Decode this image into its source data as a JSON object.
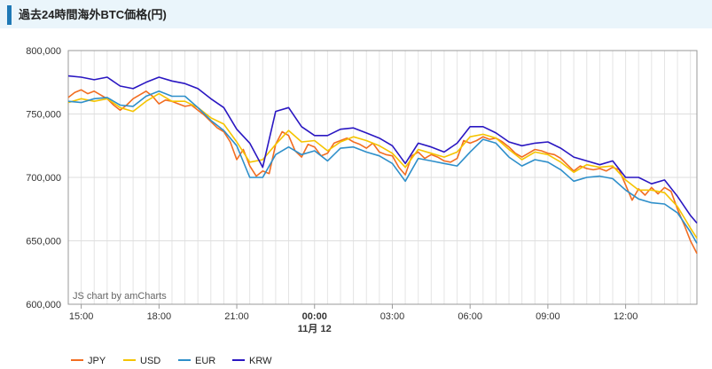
{
  "header": {
    "title": "過去24時間海外BTC価格(円)"
  },
  "chart_data": {
    "type": "line",
    "x_tick_labels": [
      "15:00",
      "18:00",
      "21:00",
      "00:00",
      "03:00",
      "06:00",
      "09:00",
      "12:00"
    ],
    "x_tick_hours": [
      15,
      18,
      21,
      24,
      27,
      30,
      33,
      36
    ],
    "date_label": "11月 12",
    "x_range_hours": [
      14.5,
      38.75
    ],
    "ylim": [
      600000,
      800000
    ],
    "y_ticks": [
      600000,
      650000,
      700000,
      750000,
      800000
    ],
    "y_tick_labels": [
      "600,000",
      "650,000",
      "700,000",
      "750,000",
      "800,000"
    ],
    "grid": true,
    "legend_position": "bottom-left",
    "credit": "JS chart by amCharts",
    "series": [
      {
        "name": "JPY",
        "color": "#f26d21",
        "points": [
          [
            14.5,
            763000
          ],
          [
            14.75,
            767000
          ],
          [
            15.0,
            769000
          ],
          [
            15.25,
            766000
          ],
          [
            15.5,
            768000
          ],
          [
            15.75,
            765000
          ],
          [
            16.0,
            762000
          ],
          [
            16.25,
            757000
          ],
          [
            16.5,
            753000
          ],
          [
            16.75,
            757000
          ],
          [
            17.0,
            762000
          ],
          [
            17.25,
            765000
          ],
          [
            17.5,
            768000
          ],
          [
            17.75,
            764000
          ],
          [
            18.0,
            758000
          ],
          [
            18.25,
            761000
          ],
          [
            18.5,
            760000
          ],
          [
            18.75,
            758000
          ],
          [
            19.0,
            756000
          ],
          [
            19.25,
            757000
          ],
          [
            19.5,
            753000
          ],
          [
            19.75,
            749000
          ],
          [
            20.0,
            744000
          ],
          [
            20.25,
            739000
          ],
          [
            20.5,
            736000
          ],
          [
            20.75,
            728000
          ],
          [
            21.0,
            714000
          ],
          [
            21.25,
            722000
          ],
          [
            21.5,
            709000
          ],
          [
            21.75,
            701000
          ],
          [
            22.0,
            705000
          ],
          [
            22.25,
            703000
          ],
          [
            22.5,
            726000
          ],
          [
            22.75,
            736000
          ],
          [
            23.0,
            733000
          ],
          [
            23.25,
            721000
          ],
          [
            23.5,
            716000
          ],
          [
            23.75,
            726000
          ],
          [
            24.0,
            724000
          ],
          [
            24.25,
            717000
          ],
          [
            24.5,
            719000
          ],
          [
            24.75,
            727000
          ],
          [
            25.0,
            729000
          ],
          [
            25.25,
            731000
          ],
          [
            25.5,
            728000
          ],
          [
            25.75,
            726000
          ],
          [
            26.0,
            723000
          ],
          [
            26.25,
            727000
          ],
          [
            26.5,
            720000
          ],
          [
            26.75,
            718000
          ],
          [
            27.0,
            717000
          ],
          [
            27.25,
            708000
          ],
          [
            27.5,
            702000
          ],
          [
            27.75,
            717000
          ],
          [
            28.0,
            720000
          ],
          [
            28.25,
            715000
          ],
          [
            28.5,
            718000
          ],
          [
            28.75,
            716000
          ],
          [
            29.0,
            713000
          ],
          [
            29.25,
            712000
          ],
          [
            29.5,
            715000
          ],
          [
            29.75,
            729000
          ],
          [
            30.0,
            727000
          ],
          [
            30.25,
            729000
          ],
          [
            30.5,
            732000
          ],
          [
            30.75,
            730000
          ],
          [
            31.0,
            731000
          ],
          [
            31.25,
            728000
          ],
          [
            31.5,
            724000
          ],
          [
            31.75,
            719000
          ],
          [
            32.0,
            716000
          ],
          [
            32.25,
            719000
          ],
          [
            32.5,
            722000
          ],
          [
            32.75,
            721000
          ],
          [
            33.0,
            719000
          ],
          [
            33.25,
            718000
          ],
          [
            33.5,
            715000
          ],
          [
            33.75,
            710000
          ],
          [
            34.0,
            705000
          ],
          [
            34.25,
            709000
          ],
          [
            34.5,
            707000
          ],
          [
            34.75,
            706000
          ],
          [
            35.0,
            707000
          ],
          [
            35.25,
            705000
          ],
          [
            35.5,
            708000
          ],
          [
            35.75,
            706000
          ],
          [
            36.0,
            694000
          ],
          [
            36.25,
            682000
          ],
          [
            36.5,
            691000
          ],
          [
            36.75,
            686000
          ],
          [
            37.0,
            692000
          ],
          [
            37.25,
            687000
          ],
          [
            37.5,
            692000
          ],
          [
            37.75,
            689000
          ],
          [
            38.0,
            675000
          ],
          [
            38.25,
            663000
          ],
          [
            38.5,
            650000
          ],
          [
            38.75,
            640000
          ]
        ]
      },
      {
        "name": "USD",
        "color": "#f5c400",
        "points": [
          [
            14.5,
            759000
          ],
          [
            15.0,
            762000
          ],
          [
            15.5,
            760000
          ],
          [
            16.0,
            762000
          ],
          [
            16.5,
            755000
          ],
          [
            17.0,
            752000
          ],
          [
            17.5,
            760000
          ],
          [
            18.0,
            766000
          ],
          [
            18.5,
            760000
          ],
          [
            19.0,
            760000
          ],
          [
            19.5,
            755000
          ],
          [
            20.0,
            747000
          ],
          [
            20.5,
            742000
          ],
          [
            21.0,
            728000
          ],
          [
            21.5,
            712000
          ],
          [
            22.0,
            714000
          ],
          [
            22.5,
            726000
          ],
          [
            23.0,
            737000
          ],
          [
            23.5,
            728000
          ],
          [
            24.0,
            729000
          ],
          [
            24.5,
            721000
          ],
          [
            25.0,
            728000
          ],
          [
            25.5,
            732000
          ],
          [
            26.0,
            729000
          ],
          [
            26.5,
            725000
          ],
          [
            27.0,
            719000
          ],
          [
            27.5,
            708000
          ],
          [
            28.0,
            722000
          ],
          [
            28.5,
            719000
          ],
          [
            29.0,
            716000
          ],
          [
            29.5,
            720000
          ],
          [
            30.0,
            732000
          ],
          [
            30.5,
            734000
          ],
          [
            31.0,
            731000
          ],
          [
            31.5,
            722000
          ],
          [
            32.0,
            714000
          ],
          [
            32.5,
            720000
          ],
          [
            33.0,
            718000
          ],
          [
            33.5,
            712000
          ],
          [
            34.0,
            704000
          ],
          [
            34.5,
            710000
          ],
          [
            35.0,
            708000
          ],
          [
            35.5,
            709000
          ],
          [
            36.0,
            698000
          ],
          [
            36.5,
            690000
          ],
          [
            37.0,
            690000
          ],
          [
            37.5,
            688000
          ],
          [
            38.0,
            677000
          ],
          [
            38.5,
            660000
          ],
          [
            38.75,
            652000
          ]
        ]
      },
      {
        "name": "EUR",
        "color": "#2e8fca",
        "points": [
          [
            14.5,
            760000
          ],
          [
            15.0,
            759000
          ],
          [
            15.5,
            762000
          ],
          [
            16.0,
            763000
          ],
          [
            16.5,
            757000
          ],
          [
            17.0,
            756000
          ],
          [
            17.5,
            764000
          ],
          [
            18.0,
            768000
          ],
          [
            18.5,
            764000
          ],
          [
            19.0,
            764000
          ],
          [
            19.5,
            755000
          ],
          [
            20.0,
            745000
          ],
          [
            20.5,
            737000
          ],
          [
            21.0,
            725000
          ],
          [
            21.5,
            700000
          ],
          [
            22.0,
            700000
          ],
          [
            22.5,
            718000
          ],
          [
            23.0,
            724000
          ],
          [
            23.5,
            718000
          ],
          [
            24.0,
            721000
          ],
          [
            24.5,
            713000
          ],
          [
            25.0,
            723000
          ],
          [
            25.5,
            724000
          ],
          [
            26.0,
            720000
          ],
          [
            26.5,
            717000
          ],
          [
            27.0,
            711000
          ],
          [
            27.5,
            697000
          ],
          [
            28.0,
            715000
          ],
          [
            28.5,
            713000
          ],
          [
            29.0,
            711000
          ],
          [
            29.5,
            709000
          ],
          [
            30.0,
            720000
          ],
          [
            30.5,
            730000
          ],
          [
            31.0,
            727000
          ],
          [
            31.5,
            716000
          ],
          [
            32.0,
            709000
          ],
          [
            32.5,
            714000
          ],
          [
            33.0,
            712000
          ],
          [
            33.5,
            706000
          ],
          [
            34.0,
            697000
          ],
          [
            34.5,
            700000
          ],
          [
            35.0,
            701000
          ],
          [
            35.5,
            699000
          ],
          [
            36.0,
            690000
          ],
          [
            36.5,
            683000
          ],
          [
            37.0,
            680000
          ],
          [
            37.5,
            679000
          ],
          [
            38.0,
            672000
          ],
          [
            38.5,
            657000
          ],
          [
            38.75,
            648000
          ]
        ]
      },
      {
        "name": "KRW",
        "color": "#2a17c2",
        "points": [
          [
            14.5,
            780000
          ],
          [
            15.0,
            779000
          ],
          [
            15.5,
            777000
          ],
          [
            16.0,
            779000
          ],
          [
            16.5,
            772000
          ],
          [
            17.0,
            770000
          ],
          [
            17.5,
            775000
          ],
          [
            18.0,
            779000
          ],
          [
            18.5,
            776000
          ],
          [
            19.0,
            774000
          ],
          [
            19.5,
            770000
          ],
          [
            20.0,
            762000
          ],
          [
            20.5,
            755000
          ],
          [
            21.0,
            738000
          ],
          [
            21.5,
            727000
          ],
          [
            22.0,
            708000
          ],
          [
            22.5,
            752000
          ],
          [
            23.0,
            755000
          ],
          [
            23.5,
            740000
          ],
          [
            24.0,
            733000
          ],
          [
            24.5,
            733000
          ],
          [
            25.0,
            738000
          ],
          [
            25.5,
            739000
          ],
          [
            26.0,
            735000
          ],
          [
            26.5,
            731000
          ],
          [
            27.0,
            725000
          ],
          [
            27.5,
            711000
          ],
          [
            28.0,
            727000
          ],
          [
            28.5,
            724000
          ],
          [
            29.0,
            720000
          ],
          [
            29.5,
            727000
          ],
          [
            30.0,
            740000
          ],
          [
            30.5,
            740000
          ],
          [
            31.0,
            735000
          ],
          [
            31.5,
            728000
          ],
          [
            32.0,
            725000
          ],
          [
            32.5,
            727000
          ],
          [
            33.0,
            728000
          ],
          [
            33.5,
            723000
          ],
          [
            34.0,
            716000
          ],
          [
            34.5,
            713000
          ],
          [
            35.0,
            710000
          ],
          [
            35.5,
            713000
          ],
          [
            36.0,
            700000
          ],
          [
            36.5,
            700000
          ],
          [
            37.0,
            695000
          ],
          [
            37.5,
            698000
          ],
          [
            38.0,
            685000
          ],
          [
            38.5,
            670000
          ],
          [
            38.75,
            664000
          ]
        ]
      }
    ]
  }
}
